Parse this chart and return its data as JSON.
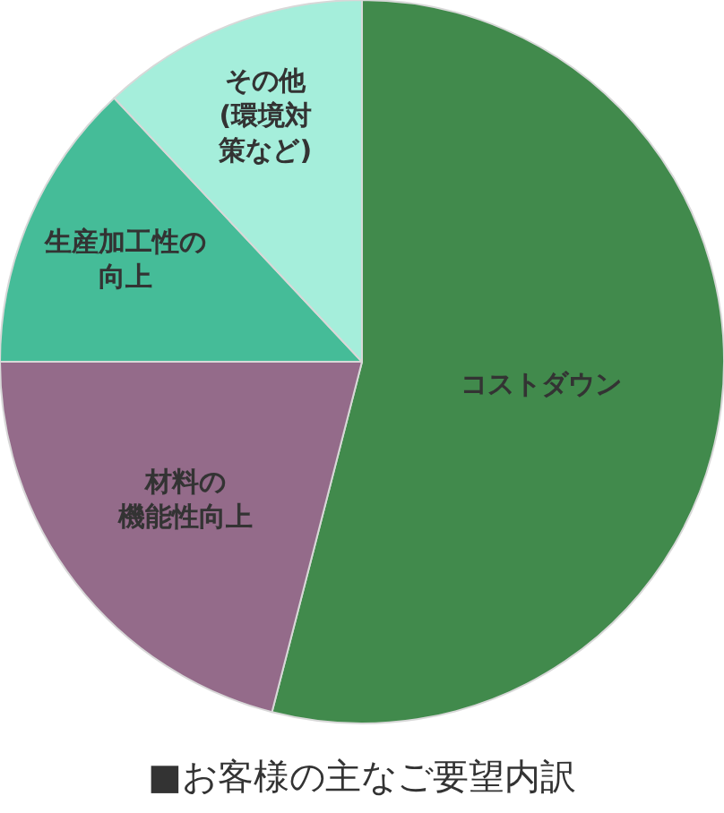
{
  "chart_data": {
    "type": "pie",
    "title": "■お客様の主なご要望内訳",
    "categories": [
      "コストダウン",
      "材料の機能性向上",
      "生産加工性の向上",
      "その他(環境対策など)"
    ],
    "values": [
      54,
      21,
      13,
      12
    ],
    "colors": [
      "#418a4c",
      "#946b8a",
      "#45bc98",
      "#a5eedb"
    ],
    "legend": false
  }
}
